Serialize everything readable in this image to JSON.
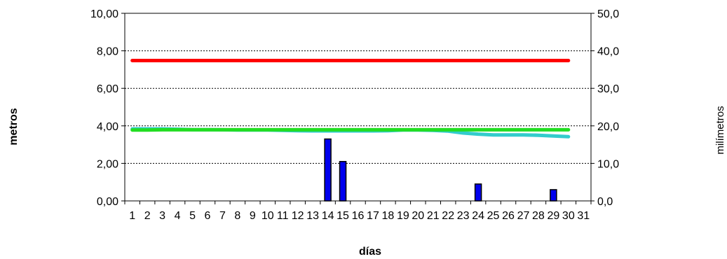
{
  "chart_data": {
    "type": "bar+line",
    "title": "",
    "xlabel": "días",
    "ylabel_left": "metros",
    "ylabel_right": "milímetros",
    "categories": [
      "1",
      "2",
      "3",
      "4",
      "5",
      "6",
      "7",
      "8",
      "9",
      "10",
      "11",
      "12",
      "13",
      "14",
      "15",
      "16",
      "17",
      "18",
      "19",
      "20",
      "21",
      "22",
      "23",
      "24",
      "25",
      "26",
      "27",
      "28",
      "29",
      "30",
      "31"
    ],
    "y_left": {
      "lim": [
        0,
        10
      ],
      "ticks": [
        "0,00",
        "2,00",
        "4,00",
        "6,00",
        "8,00",
        "10,00"
      ]
    },
    "y_right": {
      "lim": [
        0,
        50
      ],
      "ticks": [
        "0,0",
        "10,0",
        "20,0",
        "30,0",
        "40,0",
        "50,0"
      ]
    },
    "grid": "horizontal-dashed",
    "series": [
      {
        "axis": "right",
        "kind": "bar",
        "color": "#0000ee",
        "values": [
          0,
          0,
          0,
          0,
          0,
          0,
          0,
          0,
          0,
          0,
          0,
          0,
          0,
          16.5,
          10.5,
          0,
          0,
          0,
          0,
          0,
          0,
          0,
          0,
          4.5,
          0,
          0,
          0,
          0,
          3,
          0,
          null
        ]
      },
      {
        "axis": "left",
        "kind": "line",
        "color": "#ff0000",
        "values": [
          7.48,
          7.48,
          7.48,
          7.48,
          7.48,
          7.48,
          7.48,
          7.48,
          7.48,
          7.48,
          7.48,
          7.48,
          7.48,
          7.48,
          7.48,
          7.48,
          7.48,
          7.48,
          7.48,
          7.48,
          7.48,
          7.48,
          7.48,
          7.48,
          7.48,
          7.48,
          7.48,
          7.48,
          7.48,
          7.48,
          null
        ]
      },
      {
        "axis": "left",
        "kind": "line",
        "color": "#33cccc",
        "values": [
          3.84,
          3.84,
          3.84,
          3.82,
          3.8,
          3.8,
          3.79,
          3.78,
          3.78,
          3.78,
          3.76,
          3.74,
          3.73,
          3.73,
          3.73,
          3.73,
          3.73,
          3.74,
          3.78,
          3.78,
          3.76,
          3.72,
          3.62,
          3.56,
          3.52,
          3.52,
          3.52,
          3.5,
          3.46,
          3.42,
          null
        ]
      },
      {
        "axis": "left",
        "kind": "line",
        "color": "#22dd22",
        "values": [
          3.78,
          3.78,
          3.79,
          3.79,
          3.79,
          3.79,
          3.79,
          3.79,
          3.79,
          3.79,
          3.79,
          3.79,
          3.79,
          3.79,
          3.79,
          3.79,
          3.79,
          3.79,
          3.79,
          3.79,
          3.79,
          3.79,
          3.79,
          3.79,
          3.79,
          3.79,
          3.79,
          3.79,
          3.79,
          3.79,
          null
        ]
      }
    ]
  }
}
